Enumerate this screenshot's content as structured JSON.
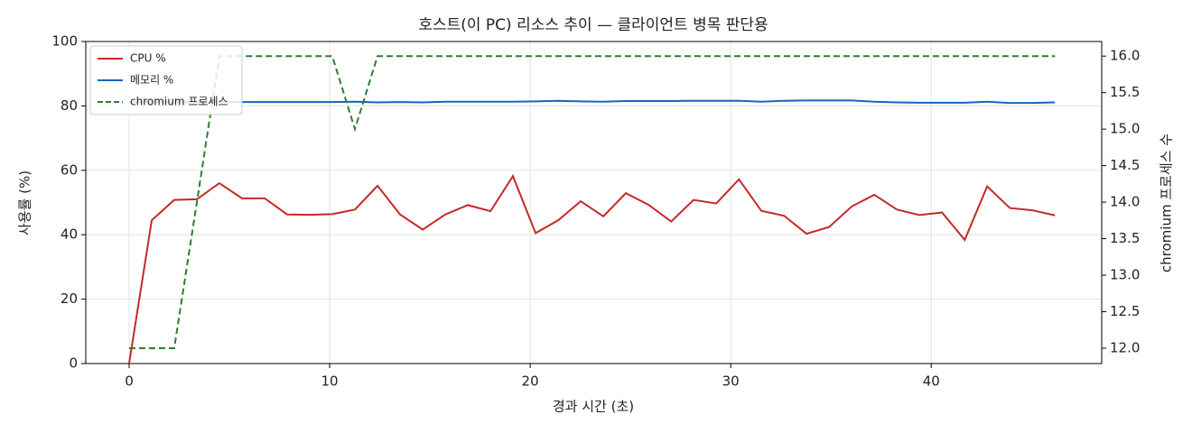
{
  "chart_data": {
    "type": "line",
    "title": "호스트(이 PC) 리소스 추이 — 클라이언트 병목 판단용",
    "xlabel": "경과 시간 (초)",
    "ylabel": "사용률 (%)",
    "y2label": "chromium 프로세스 수",
    "x": [
      0,
      1.13,
      2.25,
      3.38,
      4.5,
      5.63,
      6.76,
      7.88,
      9.01,
      10.13,
      11.26,
      12.39,
      13.51,
      14.64,
      15.77,
      16.89,
      18.02,
      19.14,
      20.27,
      21.4,
      22.52,
      23.65,
      24.77,
      25.9,
      27.03,
      28.15,
      29.28,
      30.41,
      31.53,
      32.66,
      33.78,
      34.91,
      36.04,
      37.16,
      38.29,
      39.41,
      40.54,
      41.67,
      42.79,
      43.92,
      45.04,
      46.17
    ],
    "series": [
      {
        "name": "CPU %",
        "color": "#c62828",
        "style": "solid",
        "values": [
          0,
          44.5,
          50.8,
          51,
          56,
          51.3,
          51.3,
          46.3,
          46.2,
          46.4,
          47.8,
          55.2,
          46.3,
          41.6,
          46.3,
          49.2,
          47.3,
          58.2,
          40.5,
          44.5,
          50.4,
          45.7,
          52.9,
          49.3,
          44.1,
          50.8,
          49.7,
          57.2,
          47.4,
          45.9,
          40.3,
          42.4,
          48.8,
          52.4,
          47.8,
          46.1,
          46.9,
          38.4,
          55,
          48.3,
          47.6,
          46
        ]
      },
      {
        "name": "메모리 %",
        "color": "#1565c0",
        "style": "solid",
        "values": [
          81.2,
          81.2,
          81.2,
          81.2,
          81.2,
          81.2,
          81.2,
          81.2,
          81.2,
          81.2,
          81.3,
          81.1,
          81.2,
          81.1,
          81.3,
          81.3,
          81.3,
          81.3,
          81.4,
          81.6,
          81.4,
          81.3,
          81.5,
          81.5,
          81.5,
          81.6,
          81.6,
          81.6,
          81.3,
          81.6,
          81.7,
          81.7,
          81.7,
          81.3,
          81.1,
          81,
          81,
          81,
          81.3,
          80.9,
          80.9,
          81.1
        ]
      },
      {
        "name": "chromium 프로세스",
        "color": "#2e7d32",
        "style": "dashed",
        "axis": "y2",
        "values": [
          12,
          12,
          12,
          14,
          16,
          16,
          16,
          16,
          16,
          16,
          15,
          16,
          16,
          16,
          16,
          16,
          16,
          16,
          16,
          16,
          16,
          16,
          16,
          16,
          16,
          16,
          16,
          16,
          16,
          16,
          16,
          16,
          16,
          16,
          16,
          16,
          16,
          16,
          16,
          16,
          16,
          16
        ]
      }
    ],
    "xlim": [
      -2.16,
      48.5
    ],
    "xticks": [
      0,
      10,
      20,
      30,
      40
    ],
    "ylim": [
      0,
      100
    ],
    "yticks": [
      0,
      20,
      40,
      60,
      80,
      100
    ],
    "y2lim": [
      11.79,
      16.2
    ],
    "y2ticks": [
      {
        "value": 12,
        "label": "12.0"
      },
      {
        "value": 12.5,
        "label": "12.5"
      },
      {
        "value": 13,
        "label": "13.0"
      },
      {
        "value": 13.5,
        "label": "13.5"
      },
      {
        "value": 14,
        "label": "14.0"
      },
      {
        "value": 14.5,
        "label": "14.5"
      },
      {
        "value": 15,
        "label": "15.0"
      },
      {
        "value": 15.5,
        "label": "15.5"
      },
      {
        "value": 16,
        "label": "16.0"
      }
    ],
    "grid": true,
    "legend": "upper-left"
  }
}
